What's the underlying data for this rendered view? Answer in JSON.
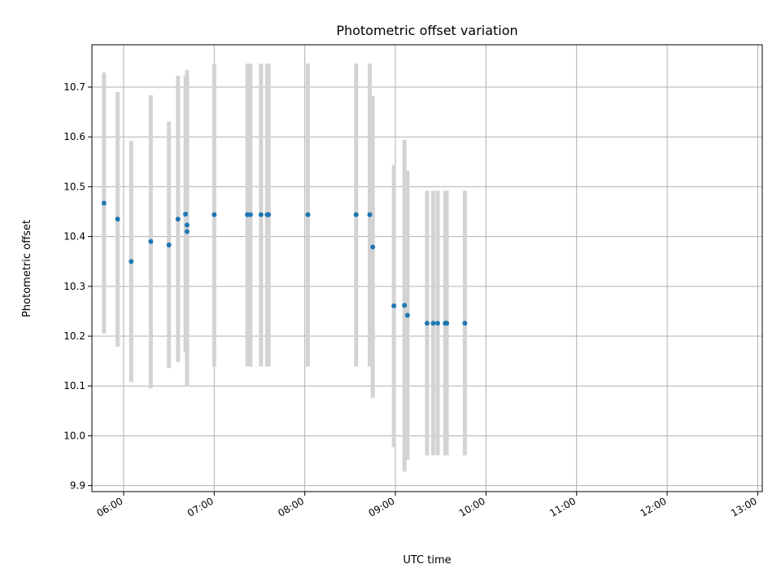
{
  "chart_data": {
    "type": "scatter",
    "title": "Photometric offset variation",
    "xlabel": "UTC time",
    "ylabel": "Photometric offset",
    "grid": true,
    "xlim": [
      "05:39",
      "13:03"
    ],
    "ylim": [
      9.888,
      10.785
    ],
    "x_ticks": [
      "06:00",
      "07:00",
      "08:00",
      "09:00",
      "10:00",
      "11:00",
      "12:00",
      "13:00"
    ],
    "y_ticks": [
      "9.9",
      "10.0",
      "10.1",
      "10.2",
      "10.3",
      "10.4",
      "10.5",
      "10.6",
      "10.7"
    ],
    "colors": {
      "points": "#1f77b4",
      "error_bars": "#d3d3d3",
      "grid": "#b0b0b0"
    },
    "series": [
      {
        "points": [
          {
            "x": "05:47",
            "y": 10.467,
            "yerr_low": 10.205,
            "yerr_high": 10.729
          },
          {
            "x": "05:56",
            "y": 10.435,
            "yerr_low": 10.179,
            "yerr_high": 10.69
          },
          {
            "x": "06:05",
            "y": 10.35,
            "yerr_low": 10.108,
            "yerr_high": 10.592
          },
          {
            "x": "06:18",
            "y": 10.39,
            "yerr_low": 10.095,
            "yerr_high": 10.684
          },
          {
            "x": "06:30",
            "y": 10.383,
            "yerr_low": 10.136,
            "yerr_high": 10.631
          },
          {
            "x": "06:36",
            "y": 10.435,
            "yerr_low": 10.148,
            "yerr_high": 10.723
          },
          {
            "x": "06:41",
            "y": 10.445,
            "yerr_low": 10.167,
            "yerr_high": 10.723
          },
          {
            "x": "06:42",
            "y": 10.423,
            "yerr_low": 10.112,
            "yerr_high": 10.734
          },
          {
            "x": "06:42",
            "y": 10.41,
            "yerr_low": 10.1,
            "yerr_high": 10.723
          },
          {
            "x": "07:00",
            "y": 10.444,
            "yerr_low": 10.139,
            "yerr_high": 10.747
          },
          {
            "x": "07:22",
            "y": 10.444,
            "yerr_low": 10.139,
            "yerr_high": 10.747
          },
          {
            "x": "07:24",
            "y": 10.444,
            "yerr_low": 10.139,
            "yerr_high": 10.747
          },
          {
            "x": "07:31",
            "y": 10.444,
            "yerr_low": 10.139,
            "yerr_high": 10.747
          },
          {
            "x": "07:35",
            "y": 10.444,
            "yerr_low": 10.139,
            "yerr_high": 10.747
          },
          {
            "x": "07:36",
            "y": 10.444,
            "yerr_low": 10.139,
            "yerr_high": 10.747
          },
          {
            "x": "08:02",
            "y": 10.444,
            "yerr_low": 10.139,
            "yerr_high": 10.747
          },
          {
            "x": "08:34",
            "y": 10.444,
            "yerr_low": 10.139,
            "yerr_high": 10.747
          },
          {
            "x": "08:43",
            "y": 10.444,
            "yerr_low": 10.139,
            "yerr_high": 10.747
          },
          {
            "x": "08:45",
            "y": 10.379,
            "yerr_low": 10.076,
            "yerr_high": 10.682
          },
          {
            "x": "08:59",
            "y": 10.261,
            "yerr_low": 9.977,
            "yerr_high": 10.544
          },
          {
            "x": "09:06",
            "y": 10.262,
            "yerr_low": 9.928,
            "yerr_high": 10.594
          },
          {
            "x": "09:08",
            "y": 10.242,
            "yerr_low": 9.952,
            "yerr_high": 10.532
          },
          {
            "x": "09:21",
            "y": 10.226,
            "yerr_low": 9.961,
            "yerr_high": 10.492
          },
          {
            "x": "09:25",
            "y": 10.226,
            "yerr_low": 9.961,
            "yerr_high": 10.492
          },
          {
            "x": "09:28",
            "y": 10.226,
            "yerr_low": 9.961,
            "yerr_high": 10.492
          },
          {
            "x": "09:33",
            "y": 10.226,
            "yerr_low": 9.961,
            "yerr_high": 10.492
          },
          {
            "x": "09:34",
            "y": 10.226,
            "yerr_low": 9.961,
            "yerr_high": 10.492
          },
          {
            "x": "09:46",
            "y": 10.226,
            "yerr_low": 9.961,
            "yerr_high": 10.492
          }
        ]
      }
    ]
  }
}
